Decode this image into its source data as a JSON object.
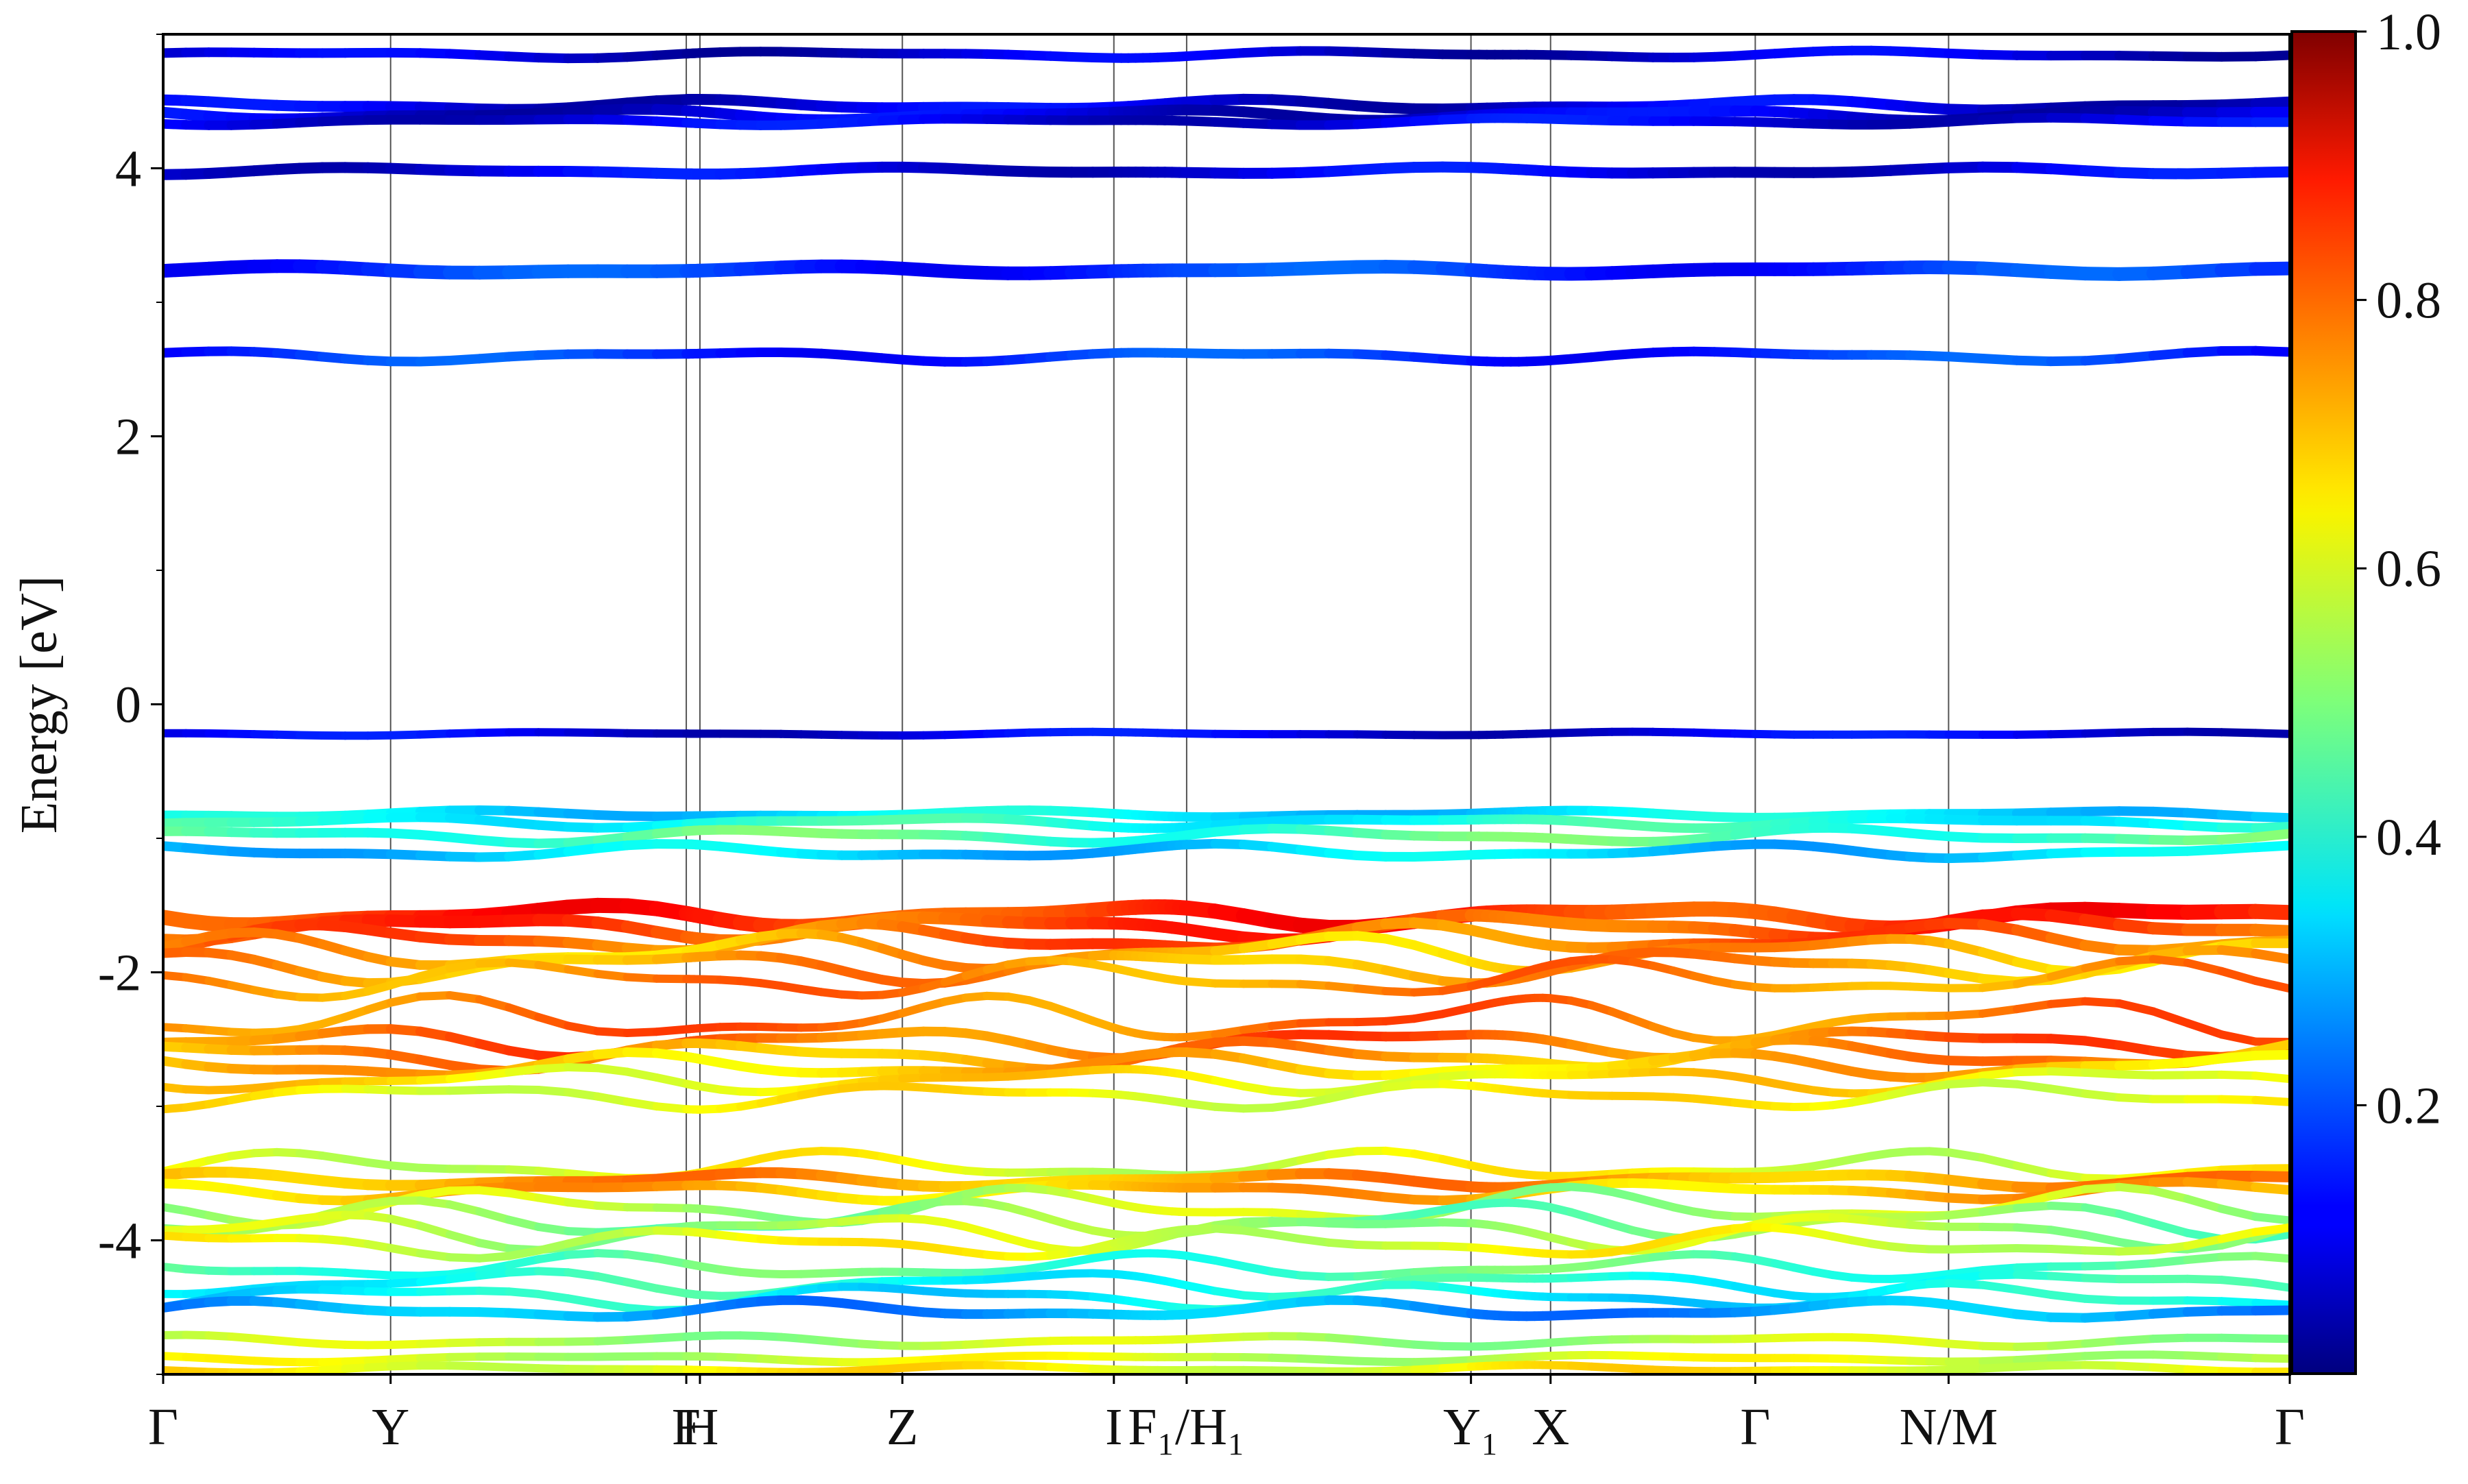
{
  "chart_data": {
    "type": "line",
    "title": "",
    "xlabel": "",
    "ylabel": "Energy [eV]",
    "ylim": [
      -5,
      5
    ],
    "y_ticks": [
      4,
      2,
      0,
      -2,
      -4
    ],
    "y_tick_labels": [
      "4",
      "2",
      "0",
      "-2",
      "-4"
    ],
    "k_path": [
      {
        "label": "Γ",
        "x": 0.0
      },
      {
        "label": "Y",
        "x": 1.0
      },
      {
        "label": "F",
        "x": 2.3
      },
      {
        "label": "H",
        "x": 2.36
      },
      {
        "label": "Z",
        "x": 3.25
      },
      {
        "label": "I",
        "x": 4.18
      },
      {
        "label": "F₁/H₁",
        "x": 4.5
      },
      {
        "label": "Y₁",
        "x": 5.75
      },
      {
        "label": "X",
        "x": 6.1
      },
      {
        "label": "Γ",
        "x": 7.0
      },
      {
        "label": "N/M",
        "x": 7.85
      },
      {
        "label": "Γ",
        "x": 9.35
      }
    ],
    "colorbar": {
      "label": "",
      "range": [
        0,
        1
      ],
      "ticks": [
        0.2,
        0.4,
        0.6,
        0.8,
        1.0
      ],
      "tick_labels": [
        "0.2",
        "0.4",
        "0.6",
        "0.8",
        "1.0"
      ],
      "colormap": "jet"
    },
    "series": [
      {
        "energy": 4.85,
        "weight": 0.08,
        "var": 0.02,
        "width": 14
      },
      {
        "energy": 4.47,
        "weight": 0.09,
        "var": 0.03,
        "width": 16
      },
      {
        "energy": 4.4,
        "weight": 0.09,
        "var": 0.03,
        "width": 16
      },
      {
        "energy": 4.35,
        "weight": 0.1,
        "var": 0.02,
        "width": 14
      },
      {
        "energy": 3.98,
        "weight": 0.1,
        "var": 0.02,
        "width": 16
      },
      {
        "energy": 3.24,
        "weight": 0.17,
        "var": 0.02,
        "width": 20
      },
      {
        "energy": 2.6,
        "weight": 0.17,
        "var": 0.03,
        "width": 14
      },
      {
        "energy": -0.22,
        "weight": 0.1,
        "var": 0.01,
        "width": 12
      },
      {
        "energy": -0.82,
        "weight": 0.35,
        "var": 0.02,
        "width": 14
      },
      {
        "energy": -0.88,
        "weight": 0.4,
        "var": 0.03,
        "width": 14
      },
      {
        "energy": -0.98,
        "weight": 0.45,
        "var": 0.04,
        "width": 14
      },
      {
        "energy": -1.1,
        "weight": 0.33,
        "var": 0.04,
        "width": 14
      },
      {
        "energy": -1.58,
        "weight": 0.83,
        "var": 0.06,
        "width": 22
      },
      {
        "energy": -1.66,
        "weight": 0.8,
        "var": 0.07,
        "width": 18
      },
      {
        "energy": -1.75,
        "weight": 0.77,
        "var": 0.08,
        "width": 16
      },
      {
        "energy": -1.85,
        "weight": 0.7,
        "var": 0.1,
        "width": 14
      },
      {
        "energy": -1.95,
        "weight": 0.72,
        "var": 0.09,
        "width": 14
      },
      {
        "energy": -2.05,
        "weight": 0.74,
        "var": 0.1,
        "width": 12
      },
      {
        "energy": -2.35,
        "weight": 0.76,
        "var": 0.12,
        "width": 12
      },
      {
        "energy": -2.52,
        "weight": 0.77,
        "var": 0.08,
        "width": 14
      },
      {
        "energy": -2.62,
        "weight": 0.72,
        "var": 0.08,
        "width": 14
      },
      {
        "energy": -2.7,
        "weight": 0.68,
        "var": 0.07,
        "width": 14
      },
      {
        "energy": -2.8,
        "weight": 0.64,
        "var": 0.07,
        "width": 12
      },
      {
        "energy": -2.92,
        "weight": 0.62,
        "var": 0.07,
        "width": 12
      },
      {
        "energy": -3.45,
        "weight": 0.6,
        "var": 0.08,
        "width": 12
      },
      {
        "energy": -3.55,
        "weight": 0.72,
        "var": 0.04,
        "width": 16
      },
      {
        "energy": -3.63,
        "weight": 0.69,
        "var": 0.05,
        "width": 14
      },
      {
        "energy": -3.75,
        "weight": 0.55,
        "var": 0.1,
        "width": 12
      },
      {
        "energy": -3.85,
        "weight": 0.5,
        "var": 0.1,
        "width": 12
      },
      {
        "energy": -3.93,
        "weight": 0.55,
        "var": 0.1,
        "width": 12
      },
      {
        "energy": -4.02,
        "weight": 0.6,
        "var": 0.08,
        "width": 12
      },
      {
        "energy": -4.2,
        "weight": 0.45,
        "var": 0.07,
        "width": 12
      },
      {
        "energy": -4.32,
        "weight": 0.4,
        "var": 0.07,
        "width": 12
      },
      {
        "energy": -4.42,
        "weight": 0.37,
        "var": 0.07,
        "width": 12
      },
      {
        "energy": -4.52,
        "weight": 0.28,
        "var": 0.05,
        "width": 14
      },
      {
        "energy": -4.75,
        "weight": 0.55,
        "var": 0.03,
        "width": 12
      },
      {
        "energy": -4.88,
        "weight": 0.58,
        "var": 0.02,
        "width": 12
      },
      {
        "energy": -4.96,
        "weight": 0.62,
        "var": 0.02,
        "width": 12
      }
    ]
  }
}
